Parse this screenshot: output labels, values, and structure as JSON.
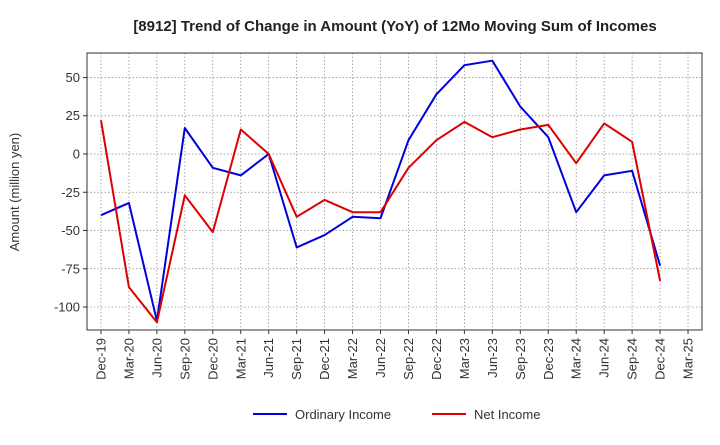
{
  "chart_data": {
    "type": "line",
    "title": "[8912]  Trend of Change in Amount (YoY) of 12Mo Moving Sum of Incomes",
    "ylabel": "Amount (million yen)",
    "xlabel": "",
    "categories": [
      "Dec-19",
      "Mar-20",
      "Jun-20",
      "Sep-20",
      "Dec-20",
      "Mar-21",
      "Jun-21",
      "Sep-21",
      "Dec-21",
      "Mar-22",
      "Jun-22",
      "Sep-22",
      "Dec-22",
      "Mar-23",
      "Jun-23",
      "Sep-23",
      "Dec-23",
      "Mar-24",
      "Jun-24",
      "Sep-24",
      "Dec-24",
      "Mar-25"
    ],
    "yticks": [
      50,
      25,
      0,
      -25,
      -50,
      -75,
      -100
    ],
    "ylim": [
      -115,
      66
    ],
    "grid": true,
    "legend_position": "bottom",
    "series": [
      {
        "name": "Ordinary Income",
        "color": "#0000dd",
        "values": [
          -40,
          -32,
          -109,
          17,
          -9,
          -14,
          0,
          -61,
          -53,
          -41,
          -42,
          9,
          39,
          58,
          61,
          31,
          11,
          -38,
          -14,
          -11,
          -73,
          null
        ]
      },
      {
        "name": "Net Income",
        "color": "#dd0000",
        "values": [
          22,
          -87,
          -110,
          -27,
          -51,
          16,
          0,
          -41,
          -30,
          -38,
          -38,
          -9,
          9,
          21,
          11,
          16,
          19,
          -6,
          20,
          8,
          -83,
          null
        ]
      }
    ]
  }
}
